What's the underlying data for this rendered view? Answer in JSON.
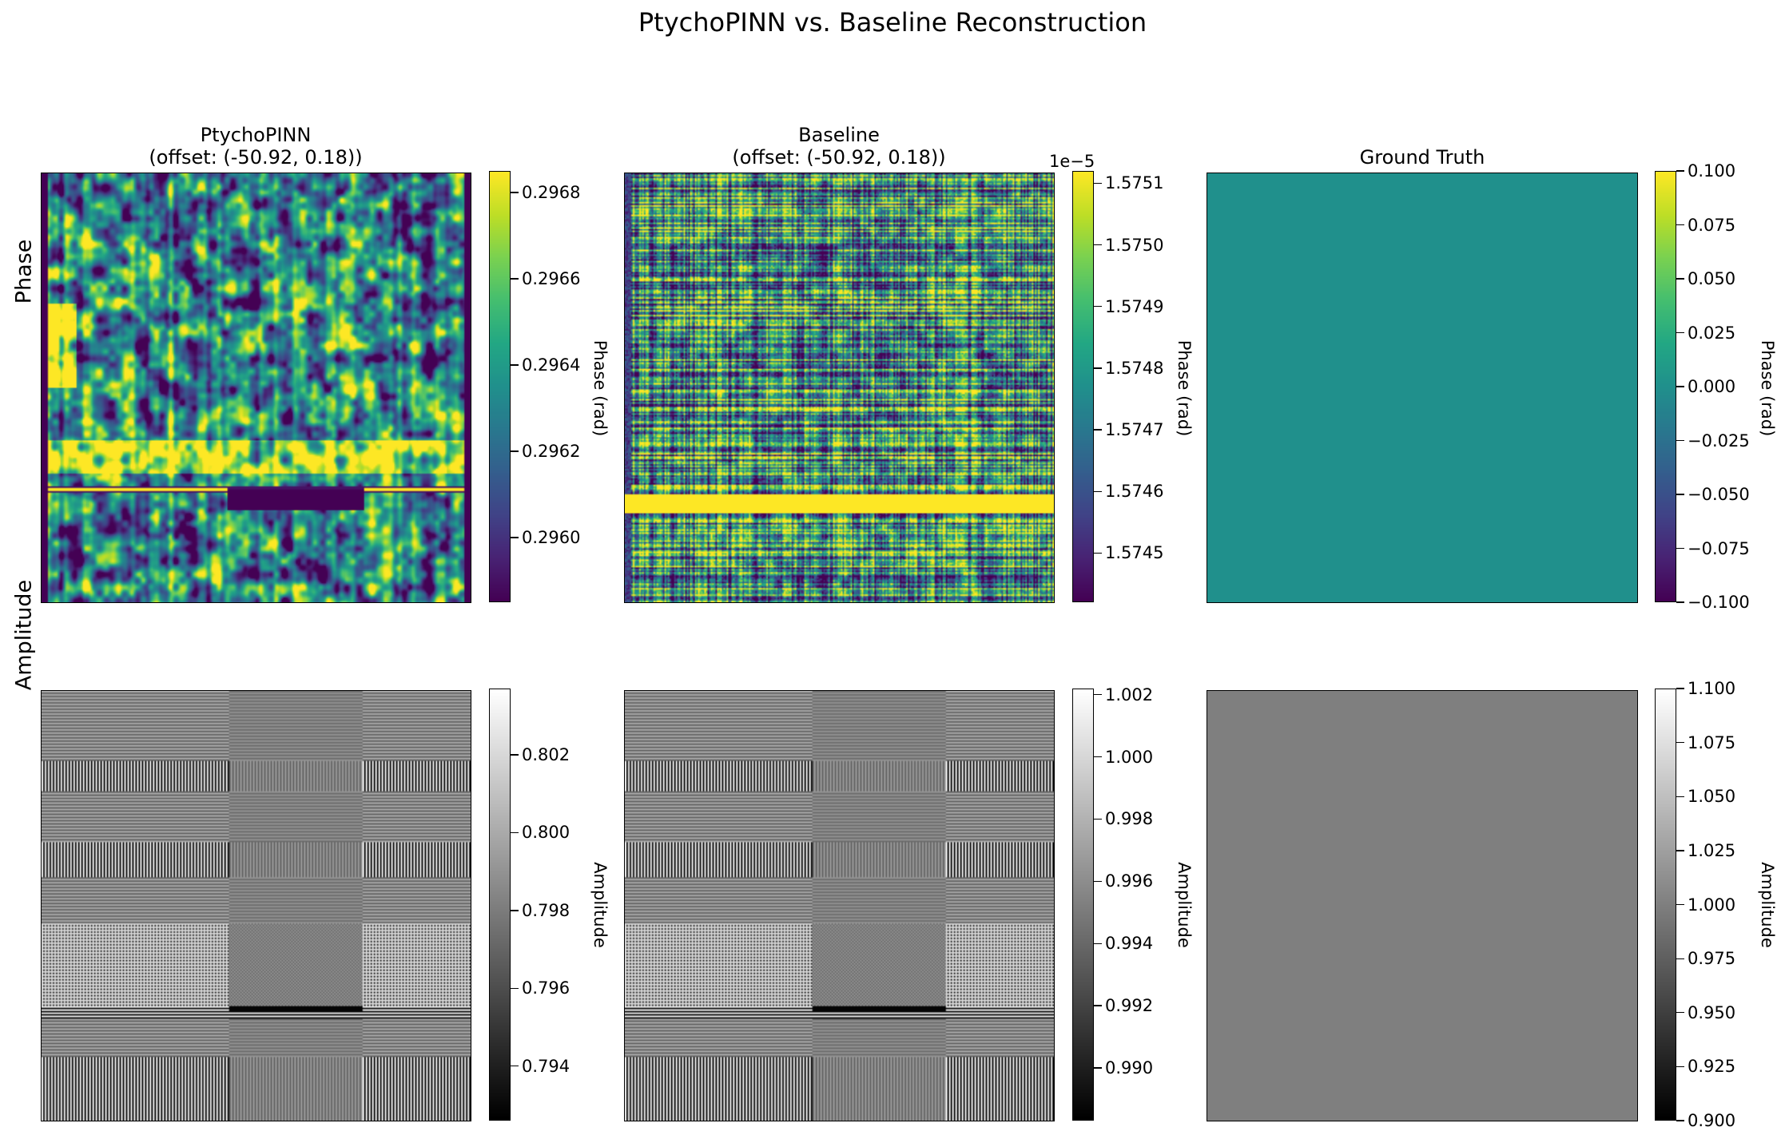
{
  "suptitle": "PtychoPINN vs. Baseline Reconstruction",
  "row_labels": {
    "phase": "Phase",
    "amplitude": "Amplitude"
  },
  "chart_data": [
    {
      "type": "heatmap",
      "title": "PtychoPINN\n(offset: (-50.92, 0.18))",
      "row": "Phase",
      "colormap": "viridis",
      "colorbar_label": "Phase (rad)",
      "colorbar_range": [
        0.29585,
        0.29685
      ],
      "colorbar_ticks": [
        0.296,
        0.2962,
        0.2964,
        0.2966,
        0.2968
      ],
      "colorbar_tick_labels": [
        "0.2960",
        "0.2962",
        "0.2964",
        "0.2966",
        "0.2968"
      ],
      "colorbar_offset": ""
    },
    {
      "type": "heatmap",
      "title": "Baseline\n(offset: (-50.92, 0.18))",
      "row": "Phase",
      "colormap": "viridis",
      "colorbar_label": "Phase (rad)",
      "colorbar_range": [
        1.57442,
        1.57512
      ],
      "colorbar_ticks": [
        1.5745,
        1.5746,
        1.5747,
        1.5748,
        1.5749,
        1.575,
        1.5751
      ],
      "colorbar_tick_labels": [
        "1.5745",
        "1.5746",
        "1.5747",
        "1.5748",
        "1.5749",
        "1.5750",
        "1.5751"
      ],
      "colorbar_offset": "1e−5"
    },
    {
      "type": "heatmap",
      "title": "Ground Truth",
      "row": "Phase",
      "colormap": "viridis",
      "colorbar_label": "Phase (rad)",
      "colorbar_range": [
        -0.1,
        0.1
      ],
      "colorbar_ticks": [
        -0.1,
        -0.075,
        -0.05,
        -0.025,
        0.0,
        0.025,
        0.05,
        0.075,
        0.1
      ],
      "colorbar_tick_labels": [
        "−0.100",
        "−0.075",
        "−0.050",
        "−0.025",
        "0.000",
        "0.025",
        "0.050",
        "0.075",
        "0.100"
      ],
      "colorbar_offset": "",
      "uniform_value": 0.0
    },
    {
      "type": "heatmap",
      "title": "",
      "row": "Amplitude",
      "colormap": "gray",
      "colorbar_label": "Amplitude",
      "colorbar_range": [
        0.7926,
        0.8037
      ],
      "colorbar_ticks": [
        0.794,
        0.796,
        0.798,
        0.8,
        0.802
      ],
      "colorbar_tick_labels": [
        "0.794",
        "0.796",
        "0.798",
        "0.800",
        "0.802"
      ],
      "colorbar_offset": ""
    },
    {
      "type": "heatmap",
      "title": "",
      "row": "Amplitude",
      "colormap": "gray",
      "colorbar_label": "Amplitude",
      "colorbar_range": [
        0.9883,
        1.0022
      ],
      "colorbar_ticks": [
        0.99,
        0.992,
        0.994,
        0.996,
        0.998,
        1.0,
        1.002
      ],
      "colorbar_tick_labels": [
        "0.990",
        "0.992",
        "0.994",
        "0.996",
        "0.998",
        "1.000",
        "1.002"
      ],
      "colorbar_offset": ""
    },
    {
      "type": "heatmap",
      "title": "",
      "row": "Amplitude",
      "colormap": "gray",
      "colorbar_label": "Amplitude",
      "colorbar_range": [
        0.9,
        1.1
      ],
      "colorbar_ticks": [
        0.9,
        0.925,
        0.95,
        0.975,
        1.0,
        1.025,
        1.05,
        1.075,
        1.1
      ],
      "colorbar_tick_labels": [
        "0.900",
        "0.925",
        "0.950",
        "0.975",
        "1.000",
        "1.025",
        "1.050",
        "1.075",
        "1.100"
      ],
      "colorbar_offset": "",
      "uniform_value": 1.0
    }
  ]
}
